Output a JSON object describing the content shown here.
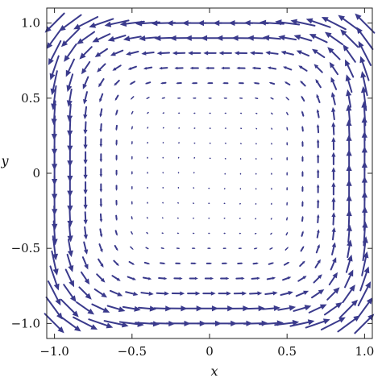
{
  "chart_data": {
    "type": "vector-field",
    "title": "",
    "xlabel": "x",
    "ylabel": "y",
    "xlim": [
      -1.05,
      1.05
    ],
    "ylim": [
      -1.1,
      1.1
    ],
    "x_ticks": [
      -1.0,
      -0.5,
      0,
      0.5,
      1.0
    ],
    "x_tick_labels": [
      "−1.0",
      "−0.5",
      "0",
      "0.5",
      "1.0"
    ],
    "y_ticks": [
      -1.0,
      -0.5,
      0,
      0.5,
      1.0
    ],
    "y_tick_labels": [
      "−1.0",
      "−0.5",
      "0",
      "0.5",
      "1.0"
    ],
    "field": "(-y³, x³)",
    "grid_x": [
      -1.0,
      -0.9,
      -0.8,
      -0.7,
      -0.6,
      -0.5,
      -0.4,
      -0.3,
      -0.2,
      -0.1,
      0.0,
      0.1,
      0.2,
      0.3,
      0.4,
      0.5,
      0.6,
      0.7,
      0.8,
      0.9,
      1.0
    ],
    "grid_y": [
      -1.0,
      -0.9,
      -0.8,
      -0.7,
      -0.6,
      -0.5,
      -0.4,
      -0.3,
      -0.2,
      -0.1,
      0.0,
      0.1,
      0.2,
      0.3,
      0.4,
      0.5,
      0.6,
      0.7,
      0.8,
      0.9,
      1.0
    ],
    "grid": false,
    "arrow_color": "#3a3a8c"
  }
}
